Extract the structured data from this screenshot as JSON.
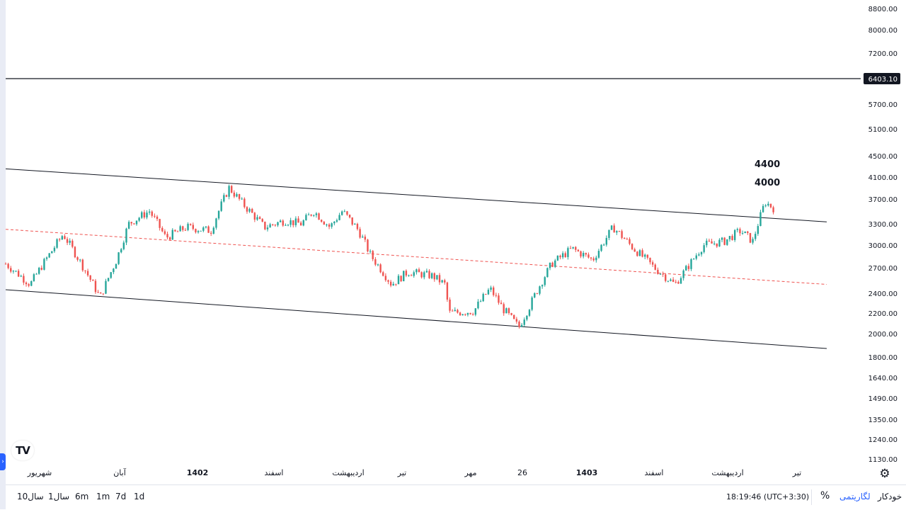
{
  "chart_data": {
    "type": "candlestick",
    "price_scale": "log",
    "y_axis_ticks": [
      "8800.00",
      "8000.00",
      "7200.00",
      "6403.10",
      "5700.00",
      "5100.00",
      "4500.00",
      "4100.00",
      "3700.00",
      "3300.00",
      "3000.00",
      "2700.00",
      "2400.00",
      "2200.00",
      "2000.00",
      "1800.00",
      "1640.00",
      "1490.00",
      "1350.00",
      "1240.00",
      "1130.00"
    ],
    "x_axis_ticks": [
      {
        "label": "شهریور",
        "bold": false
      },
      {
        "label": "آبان",
        "bold": false
      },
      {
        "label": "1402",
        "bold": true
      },
      {
        "label": "اسفند",
        "bold": false
      },
      {
        "label": "اردیبهشت",
        "bold": false
      },
      {
        "label": "تیر",
        "bold": false
      },
      {
        "label": "مهر",
        "bold": false
      },
      {
        "label": "26",
        "bold": false
      },
      {
        "label": "1403",
        "bold": true
      },
      {
        "label": "اسفند",
        "bold": false
      },
      {
        "label": "اردیبهشت",
        "bold": false
      },
      {
        "label": "تیر",
        "bold": false
      }
    ],
    "horizontal_level": {
      "value": 6403.1,
      "label": "6403.10"
    },
    "annotations": [
      "4400",
      "4000"
    ],
    "channel": {
      "upper_line": [
        {
          "x": "start",
          "y": 4250
        },
        {
          "x": "end",
          "y": 3330
        }
      ],
      "lower_line": [
        {
          "x": "start",
          "y": 2440
        },
        {
          "x": "end",
          "y": 1870
        }
      ],
      "mid_line_dashed": [
        {
          "x": "start",
          "y": 3220
        },
        {
          "x": "end",
          "y": 2500
        }
      ]
    },
    "price_path": [
      {
        "t": 0.0,
        "p": 2750
      },
      {
        "t": 0.03,
        "p": 2500
      },
      {
        "t": 0.055,
        "p": 2900
      },
      {
        "t": 0.07,
        "p": 3150
      },
      {
        "t": 0.095,
        "p": 2700
      },
      {
        "t": 0.115,
        "p": 2350
      },
      {
        "t": 0.135,
        "p": 2800
      },
      {
        "t": 0.15,
        "p": 3300
      },
      {
        "t": 0.175,
        "p": 3500
      },
      {
        "t": 0.195,
        "p": 3100
      },
      {
        "t": 0.22,
        "p": 3250
      },
      {
        "t": 0.25,
        "p": 3200
      },
      {
        "t": 0.272,
        "p": 3900
      },
      {
        "t": 0.29,
        "p": 3600
      },
      {
        "t": 0.315,
        "p": 3250
      },
      {
        "t": 0.34,
        "p": 3350
      },
      {
        "t": 0.36,
        "p": 3300
      },
      {
        "t": 0.375,
        "p": 3500
      },
      {
        "t": 0.395,
        "p": 3250
      },
      {
        "t": 0.41,
        "p": 3500
      },
      {
        "t": 0.43,
        "p": 3200
      },
      {
        "t": 0.445,
        "p": 2850
      },
      {
        "t": 0.47,
        "p": 2500
      },
      {
        "t": 0.49,
        "p": 2650
      },
      {
        "t": 0.52,
        "p": 2600
      },
      {
        "t": 0.535,
        "p": 2500
      },
      {
        "t": 0.54,
        "p": 2200
      },
      {
        "t": 0.57,
        "p": 2220
      },
      {
        "t": 0.59,
        "p": 2450
      },
      {
        "t": 0.605,
        "p": 2250
      },
      {
        "t": 0.625,
        "p": 2060
      },
      {
        "t": 0.64,
        "p": 2300
      },
      {
        "t": 0.665,
        "p": 2750
      },
      {
        "t": 0.69,
        "p": 2950
      },
      {
        "t": 0.715,
        "p": 2800
      },
      {
        "t": 0.74,
        "p": 3250
      },
      {
        "t": 0.765,
        "p": 2950
      },
      {
        "t": 0.79,
        "p": 2700
      },
      {
        "t": 0.815,
        "p": 2500
      },
      {
        "t": 0.83,
        "p": 2700
      },
      {
        "t": 0.85,
        "p": 3000
      },
      {
        "t": 0.875,
        "p": 3050
      },
      {
        "t": 0.895,
        "p": 3200
      },
      {
        "t": 0.91,
        "p": 3050
      },
      {
        "t": 0.925,
        "p": 3650
      },
      {
        "t": 0.935,
        "p": 3550
      }
    ],
    "colors": {
      "up": "#26a69a",
      "down": "#ef5350",
      "channel": "#131722",
      "mid": "#ef5350",
      "level": "#131722"
    }
  },
  "bottom_bar": {
    "ranges": [
      "10سال",
      "1سال",
      "6m",
      "1m",
      "7d",
      "1d"
    ],
    "clock": "18:19:46 (UTC+3:30)",
    "percent_label": "%",
    "log_label": "لگاریتمی",
    "auto_label": "خودکار"
  },
  "logo_text": "TV",
  "settings_icon": "gear-icon"
}
